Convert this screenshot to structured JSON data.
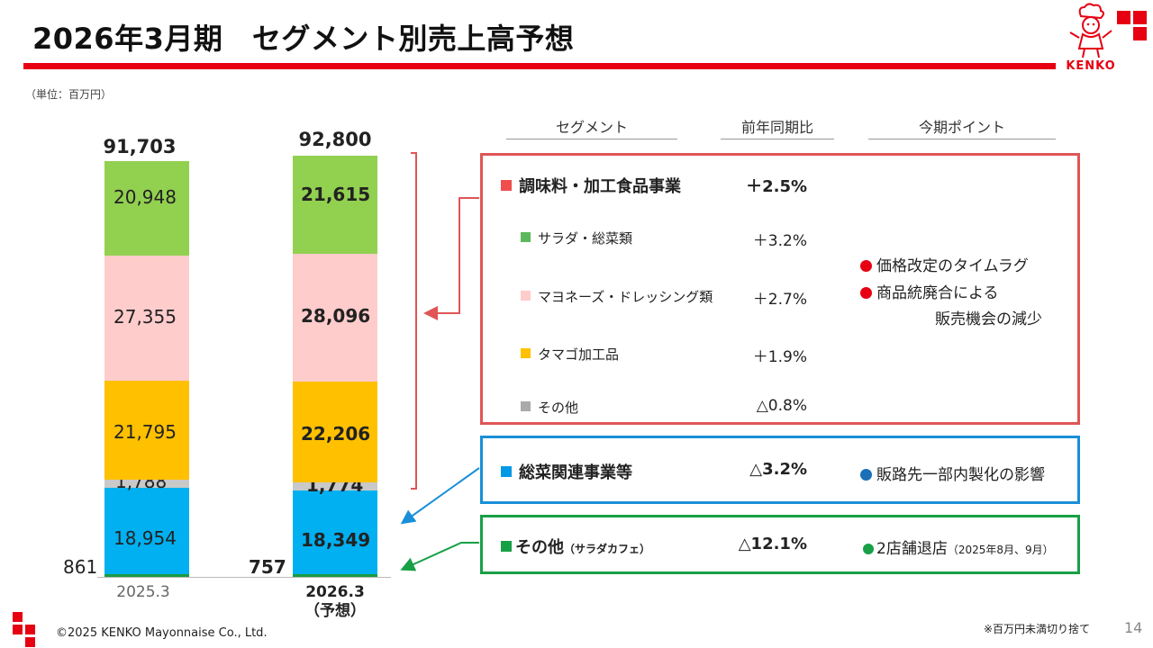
{
  "header": {
    "title": "2026年3月期　セグメント別売上高予想",
    "unit": "（単位：百万円）",
    "brand": "KENKO"
  },
  "chart_data": {
    "type": "stacked-bar",
    "categories": [
      "2025.3",
      "2026.3\n（予想）"
    ],
    "totals": [
      "91,703",
      "92,800"
    ],
    "series": [
      {
        "name": "その他（サラダカフェ）",
        "color": "#1a9b42",
        "values": [
          861,
          757
        ],
        "labels": [
          "861",
          "757"
        ]
      },
      {
        "name": "総菜関連事業等",
        "color": "#00b0f0",
        "values": [
          18954,
          18349
        ],
        "labels": [
          "18,954",
          "18,349"
        ]
      },
      {
        "name": "その他",
        "color": "#c9c9c9",
        "values": [
          1788,
          1774
        ],
        "labels": [
          "1,788",
          "1,774"
        ]
      },
      {
        "name": "タマゴ加工品",
        "color": "#ffc000",
        "values": [
          21795,
          22206
        ],
        "labels": [
          "21,795",
          "22,206"
        ]
      },
      {
        "name": "マヨネーズ・ドレッシング類",
        "color": "#ffcccc",
        "values": [
          27355,
          28096
        ],
        "labels": [
          "27,355",
          "28,096"
        ]
      },
      {
        "name": "サラダ・総菜類",
        "color": "#92d050",
        "values": [
          20948,
          21615
        ],
        "labels": [
          "20,948",
          "21,615"
        ]
      }
    ],
    "ylim": [
      0,
      95000
    ]
  },
  "table": {
    "headers": {
      "segment": "セグメント",
      "yoy": "前年同期比",
      "points": "今期ポイント"
    },
    "seasoning": {
      "name": "調味料・加工食品事業",
      "yoy": "＋2.5%",
      "color": "#f04e4e",
      "subs": [
        {
          "name": "サラダ・総菜類",
          "yoy": "＋3.2%",
          "color": "#5cb85c"
        },
        {
          "name": "マヨネーズ・ドレッシング類",
          "yoy": "＋2.7%",
          "color": "#ffcccc"
        },
        {
          "name": "タマゴ加工品",
          "yoy": "＋1.9%",
          "color": "#ffc000"
        },
        {
          "name": "その他",
          "yoy": "△0.8%",
          "color": "#aaaaaa"
        }
      ],
      "points": [
        "価格改定のタイムラグ",
        "商品統廃合による",
        "販売機会の減少"
      ]
    },
    "sozai": {
      "name": "総菜関連事業等",
      "yoy": "△3.2%",
      "color": "#0099e6",
      "point": "販路先一部内製化の影響"
    },
    "other": {
      "name": "その他",
      "name_small": "（サラダカフェ）",
      "yoy": "△12.1%",
      "color": "#18a046",
      "point": "2店舗退店",
      "point_small": "（2025年8月、9月）"
    }
  },
  "colors": {
    "red": "#e60012",
    "blue": "#1a8fd8",
    "green": "#18a046"
  },
  "footer": {
    "copyright": "©2025 KENKO Mayonnaise Co., Ltd.",
    "note": "※百万円未満切り捨て",
    "page": "14"
  }
}
